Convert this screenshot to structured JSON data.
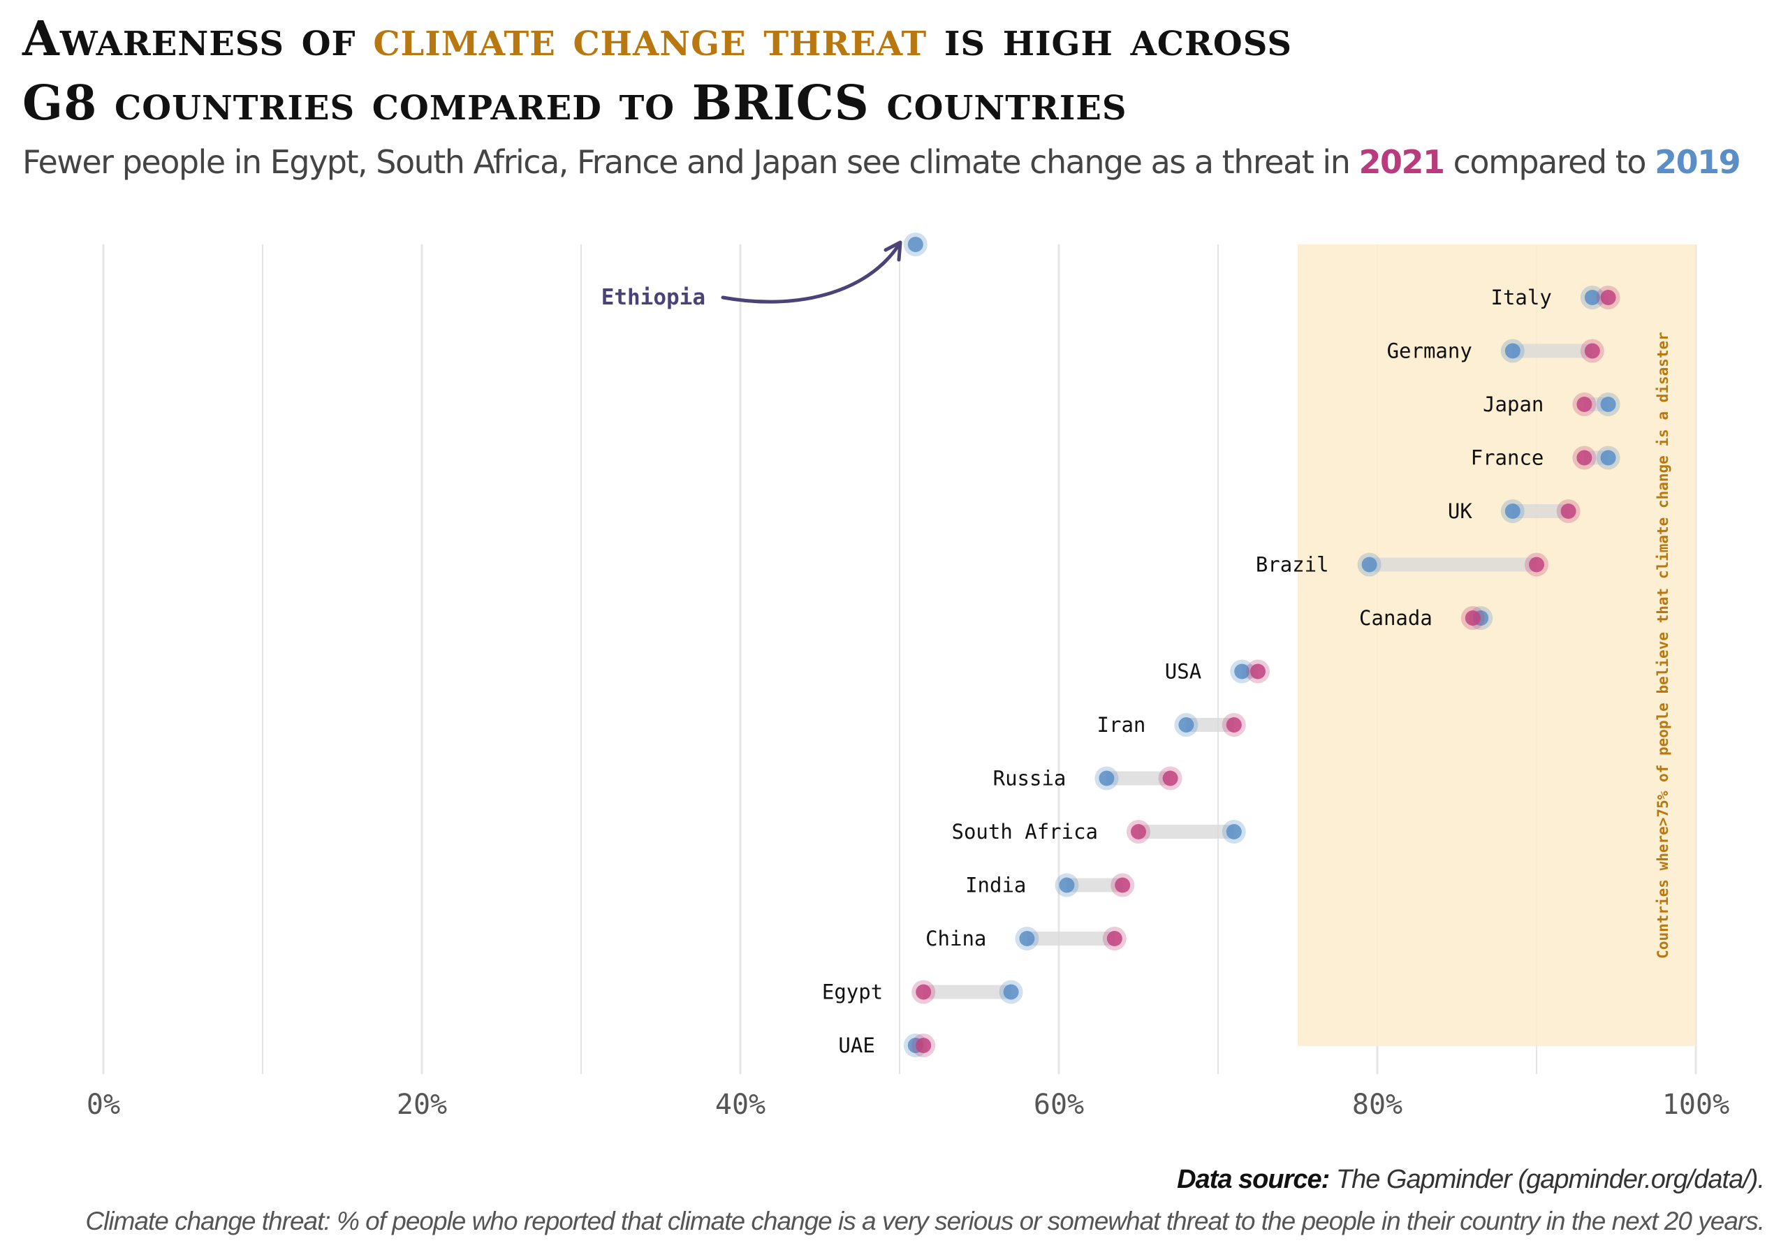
{
  "title": {
    "line1_prefix": "Awareness of",
    "line1_highlight": "climate change threat",
    "line1_suffix": "is high across",
    "line2": "G8 countries compared to BRICS countries"
  },
  "subtitle": {
    "prefix": "Fewer people in Egypt, South Africa, France and Japan see climate change as a threat in",
    "year_2021": "2021",
    "middle": "compared to",
    "year_2019": "2019"
  },
  "caption": {
    "source_label": "Data source:",
    "source_text": "The Gapminder (gapminder.org/data/).",
    "note": "Climate change threat: %  of people who reported that climate change is a very serious or somewhat threat to the people in their country in the next 20 years."
  },
  "colors": {
    "year_2019": "#5b8ec6",
    "year_2021": "#c2437f",
    "highlight": "#b8780f",
    "band": "#fdeccb",
    "annotation": "#4b4278"
  },
  "chart_data": {
    "type": "dumbbell",
    "xlim": [
      0,
      100
    ],
    "x_ticks": [
      "0%",
      "20%",
      "40%",
      "60%",
      "80%",
      "100%"
    ],
    "grid": true,
    "band": {
      "from": 75,
      "to": 100,
      "label": "Countries where>75% of people believe that climate change is a disaster"
    },
    "annotation": {
      "label": "Ethiopia",
      "value_2019": 51
    },
    "rows": [
      {
        "country": "Italy",
        "y2019": 93.5,
        "y2021": 94.5
      },
      {
        "country": "Germany",
        "y2019": 88.5,
        "y2021": 93.5
      },
      {
        "country": "Japan",
        "y2019": 94.5,
        "y2021": 93.0
      },
      {
        "country": "France",
        "y2019": 94.5,
        "y2021": 93.0
      },
      {
        "country": "UK",
        "y2019": 88.5,
        "y2021": 92.0
      },
      {
        "country": "Brazil",
        "y2019": 79.5,
        "y2021": 90.0
      },
      {
        "country": "Canada",
        "y2019": 86.5,
        "y2021": 86.0
      },
      {
        "country": "USA",
        "y2019": 71.5,
        "y2021": 72.5
      },
      {
        "country": "Iran",
        "y2019": 68.0,
        "y2021": 71.0
      },
      {
        "country": "Russia",
        "y2019": 63.0,
        "y2021": 67.0
      },
      {
        "country": "South Africa",
        "y2019": 71.0,
        "y2021": 65.0
      },
      {
        "country": "India",
        "y2019": 60.5,
        "y2021": 64.0
      },
      {
        "country": "China",
        "y2019": 58.0,
        "y2021": 63.5
      },
      {
        "country": "Egypt",
        "y2019": 57.0,
        "y2021": 51.5
      },
      {
        "country": "UAE",
        "y2019": 51.0,
        "y2021": 51.5
      }
    ]
  }
}
